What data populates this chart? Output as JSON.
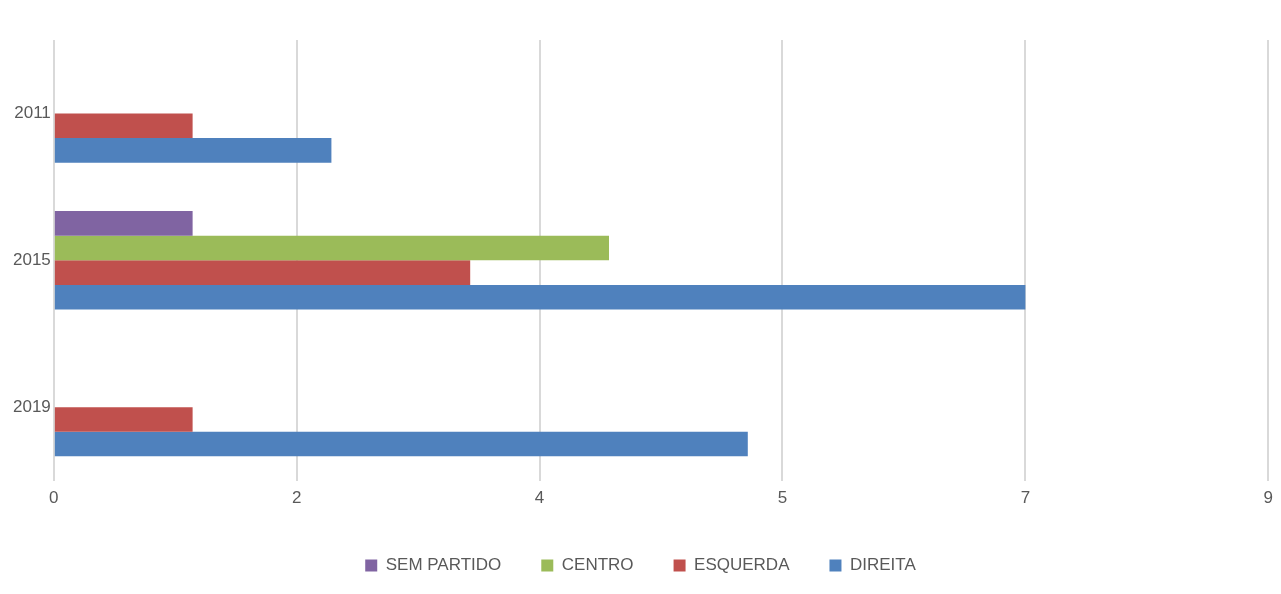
{
  "chart_data": {
    "type": "bar",
    "orientation": "horizontal",
    "categories": [
      "2011",
      "2015",
      "2019"
    ],
    "series": [
      {
        "name": "SEM PARTIDO",
        "color": "#8064a2",
        "values": [
          null,
          1,
          null
        ]
      },
      {
        "name": "CENTRO",
        "color": "#9bbb59",
        "values": [
          null,
          4,
          null
        ]
      },
      {
        "name": "ESQUERDA",
        "color": "#c0504d",
        "values": [
          1,
          3,
          1
        ]
      },
      {
        "name": "DIREITA",
        "color": "#4f81bd",
        "values": [
          2,
          7,
          5
        ]
      }
    ],
    "xlim": [
      0,
      8.75
    ],
    "xticks": [
      0,
      {
        "value": 1.75,
        "label": "2"
      },
      {
        "value": 3.5,
        "label": "4"
      },
      {
        "value": 5.25,
        "label": "5"
      },
      7,
      {
        "value": 8.75,
        "label": "9"
      }
    ],
    "grid": "x",
    "legend": "bottom"
  }
}
